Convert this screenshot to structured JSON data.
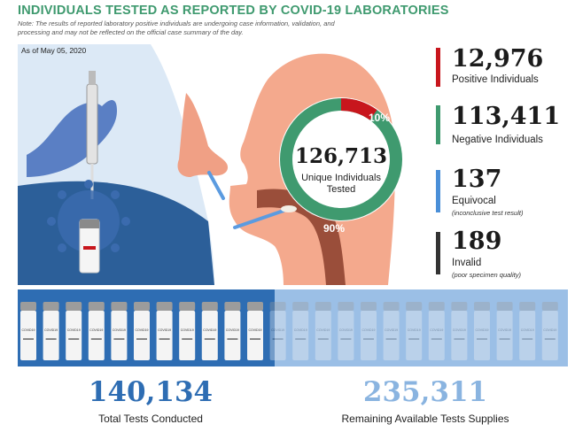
{
  "header": {
    "title": "INDIVIDUALS TESTED AS REPORTED BY COVID-19 LABORATORIES",
    "note": "Note: The results of reported laboratory positive individuals are undergoing case information, validation, and processing and may not be reflected on the official case summary of the day.",
    "as_of": "As of May 05, 2020"
  },
  "donut": {
    "center_value": "126,713",
    "center_label_line1": "Unique Individuals",
    "center_label_line2": "Tested",
    "positive_pct_label": "10%",
    "negative_pct_label": "90%"
  },
  "stats": [
    {
      "value": "12,976",
      "label": "Positive Individuals",
      "sub": "",
      "color": "#c8161d"
    },
    {
      "value": "113,411",
      "label": "Negative Individuals",
      "sub": "",
      "color": "#3f9a6f"
    },
    {
      "value": "137",
      "label": "Equivocal",
      "sub": "(inconclusive test result)",
      "color": "#4a8fd8"
    },
    {
      "value": "189",
      "label": "Invalid",
      "sub": "(poor specimen quality)",
      "color": "#333333"
    }
  ],
  "totals": {
    "conducted_value": "140,134",
    "conducted_label": "Total Tests Conducted",
    "remaining_value": "235,311",
    "remaining_label": "Remaining Available Tests Supplies"
  },
  "tube_label": "COVID19",
  "chart_data": {
    "type": "pie",
    "categories": [
      "Positive Individuals",
      "Negative Individuals"
    ],
    "values": [
      10,
      90
    ],
    "center_total": 126713,
    "stats": {
      "positive": 12976,
      "negative": 113411,
      "equivocal": 137,
      "invalid": 189,
      "total_tests_conducted": 140134,
      "remaining_test_supplies": 235311
    }
  },
  "colors": {
    "title_green": "#3f9a6f",
    "positive_red": "#c8161d",
    "negative_green": "#3f9a6f",
    "dark_blue": "#2e6db3",
    "light_blue": "#8ab4e0",
    "skin": "#f0a085",
    "glove": "#5a7fc4"
  }
}
